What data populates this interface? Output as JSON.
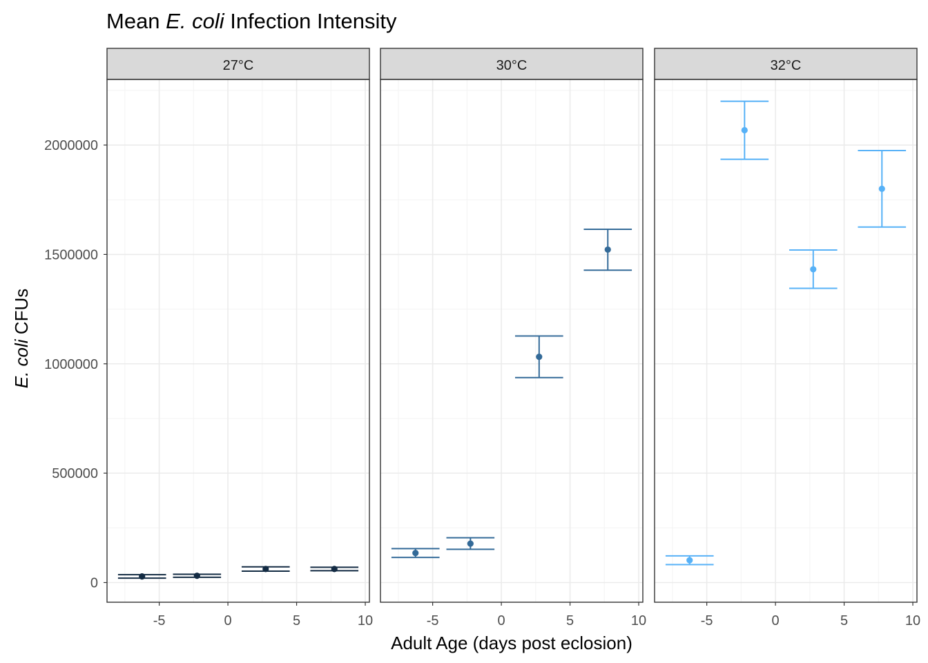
{
  "chart_data": {
    "type": "scatter",
    "title_parts": [
      "Mean ",
      "E. coli",
      " Infection Intensity"
    ],
    "xlabel": "Adult Age (days post eclosion)",
    "ylabel_parts": [
      "E. coli",
      " CFUs"
    ],
    "xlim": [
      -8.8,
      10.3
    ],
    "ylim": [
      -90000,
      2300000
    ],
    "x_ticks": [
      -5,
      0,
      5,
      10
    ],
    "x_tick_labels": [
      "-5",
      "0",
      "5",
      "10"
    ],
    "y_ticks": [
      0,
      500000,
      1000000,
      1500000,
      2000000
    ],
    "y_tick_labels": [
      "0",
      "500000",
      "1000000",
      "1500000",
      "2000000"
    ],
    "grid": true,
    "error_bar_cap_width_days": 3.5,
    "panels": [
      {
        "label": "27°C",
        "color": "#132b43",
        "points": [
          {
            "x": -6.25,
            "y": 28000,
            "lower": 20000,
            "upper": 36000
          },
          {
            "x": -2.25,
            "y": 31000,
            "lower": 24000,
            "upper": 38000
          },
          {
            "x": 2.75,
            "y": 62000,
            "lower": 52000,
            "upper": 72000
          },
          {
            "x": 7.75,
            "y": 62000,
            "lower": 54000,
            "upper": 70000
          }
        ]
      },
      {
        "label": "30°C",
        "color": "#336a98",
        "points": [
          {
            "x": -6.25,
            "y": 135000,
            "lower": 115000,
            "upper": 155000
          },
          {
            "x": -2.25,
            "y": 178000,
            "lower": 152000,
            "upper": 205000
          },
          {
            "x": 2.75,
            "y": 1032000,
            "lower": 937000,
            "upper": 1127000
          },
          {
            "x": 7.75,
            "y": 1522000,
            "lower": 1428000,
            "upper": 1615000
          }
        ]
      },
      {
        "label": "32°C",
        "color": "#56b1f7",
        "points": [
          {
            "x": -6.25,
            "y": 102000,
            "lower": 82000,
            "upper": 122000
          },
          {
            "x": -2.25,
            "y": 2068000,
            "lower": 1935000,
            "upper": 2200000
          },
          {
            "x": 2.75,
            "y": 1432000,
            "lower": 1345000,
            "upper": 1520000
          },
          {
            "x": 7.75,
            "y": 1800000,
            "lower": 1625000,
            "upper": 1975000
          }
        ]
      }
    ]
  }
}
